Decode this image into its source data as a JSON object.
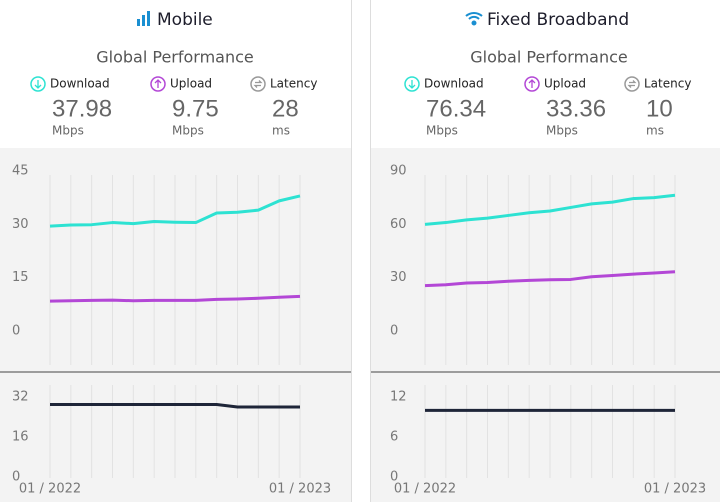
{
  "panels": [
    {
      "title": "Mobile",
      "subtitle": "Global Performance",
      "metrics": [
        {
          "label": "Download",
          "value": 37.98,
          "unit": "Mbps"
        },
        {
          "label": "Upload",
          "value": 9.75,
          "unit": "Mbps"
        },
        {
          "label": "Latency",
          "value": 28,
          "unit": "ms"
        }
      ]
    },
    {
      "title": "Fixed Broadband",
      "subtitle": "Global Performance",
      "metrics": [
        {
          "label": "Download",
          "value": 76.34,
          "unit": "Mbps"
        },
        {
          "label": "Upload",
          "value": 33.36,
          "unit": "Mbps"
        },
        {
          "label": "Latency",
          "value": 10,
          "unit": "ms"
        }
      ]
    }
  ],
  "chart_data": [
    {
      "type": "line",
      "ylim": [
        0,
        45
      ],
      "yticks": [
        0,
        15,
        30,
        45
      ],
      "series": [
        {
          "color": "#2de2d2",
          "values": [
            29.5,
            29.8,
            29.9,
            30.5,
            30.2,
            30.8,
            30.6,
            30.5,
            33.2,
            33.4,
            34.0,
            36.6,
            37.98
          ]
        },
        {
          "color": "#b347d6",
          "values": [
            8.4,
            8.5,
            8.6,
            8.7,
            8.5,
            8.6,
            8.6,
            8.6,
            8.9,
            9.0,
            9.2,
            9.5,
            9.75
          ]
        }
      ]
    },
    {
      "type": "line",
      "ylim": [
        0,
        32
      ],
      "yticks": [
        0,
        16,
        32
      ],
      "categories": [
        "01 / 2022",
        null,
        null,
        null,
        null,
        null,
        null,
        null,
        null,
        null,
        null,
        null,
        "01 / 2023"
      ],
      "series": [
        {
          "color": "#1e2538",
          "values": [
            29,
            29,
            29,
            29,
            29,
            29,
            29,
            29,
            29,
            28,
            28,
            28,
            28
          ]
        }
      ]
    },
    {
      "type": "line",
      "ylim": [
        0,
        90
      ],
      "yticks": [
        0,
        30,
        60,
        90
      ],
      "series": [
        {
          "color": "#2de2d2",
          "values": [
            60,
            61,
            62.5,
            63.5,
            65,
            66.5,
            67.5,
            69.5,
            71.5,
            72.5,
            74.5,
            75,
            76.34
          ]
        },
        {
          "color": "#b347d6",
          "values": [
            25.5,
            26,
            27,
            27.3,
            28,
            28.5,
            28.8,
            29,
            30.5,
            31.2,
            32,
            32.6,
            33.36
          ]
        }
      ]
    },
    {
      "type": "line",
      "ylim": [
        0,
        12
      ],
      "yticks": [
        0,
        6,
        12
      ],
      "categories": [
        "01 / 2022",
        null,
        null,
        null,
        null,
        null,
        null,
        null,
        null,
        null,
        null,
        null,
        "01 / 2023"
      ],
      "series": [
        {
          "color": "#1e2538",
          "values": [
            10,
            10,
            10,
            10,
            10,
            10,
            10,
            10,
            10,
            10,
            10,
            10,
            10
          ]
        }
      ]
    }
  ]
}
